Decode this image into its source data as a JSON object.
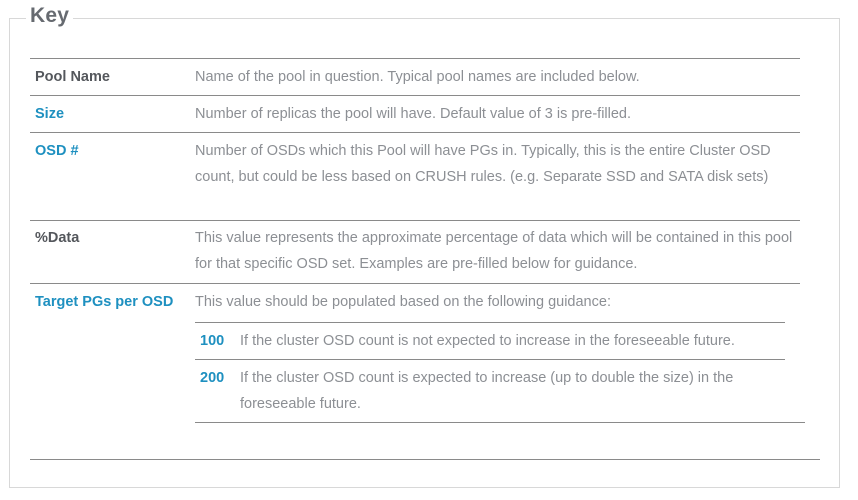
{
  "legend": "Key",
  "rows": [
    {
      "key": "Pool Name",
      "desc": "Name of the pool in question. Typical pool names are included below."
    },
    {
      "key": "Size",
      "desc": "Number of replicas the pool will have. Default value of 3 is pre-filled."
    },
    {
      "key": "OSD #",
      "desc": "Number of OSDs which this Pool will have PGs in. Typically, this is the entire Cluster OSD count, but could be less based on CRUSH rules. (e.g. Separate SSD and SATA disk sets)"
    },
    {
      "key": "%Data",
      "desc": "This value represents the approximate percentage of data which will be contained in this pool for that specific OSD set. Examples are pre-filled below for guidance."
    },
    {
      "key": "Target PGs per OSD",
      "desc": "This value should be populated based on the following guidance:"
    }
  ],
  "guidance": [
    {
      "value": "100",
      "text": "If the cluster OSD count is not expected to increase in the foreseeable future."
    },
    {
      "value": "200",
      "text": "If the cluster OSD count is expected to increase (up to double the size) in the foreseeable future."
    }
  ],
  "colors": {
    "accent": "#1e90c0",
    "key_text": "#54575c",
    "desc_text": "#8c8f94",
    "rule": "#8a8a8a"
  }
}
